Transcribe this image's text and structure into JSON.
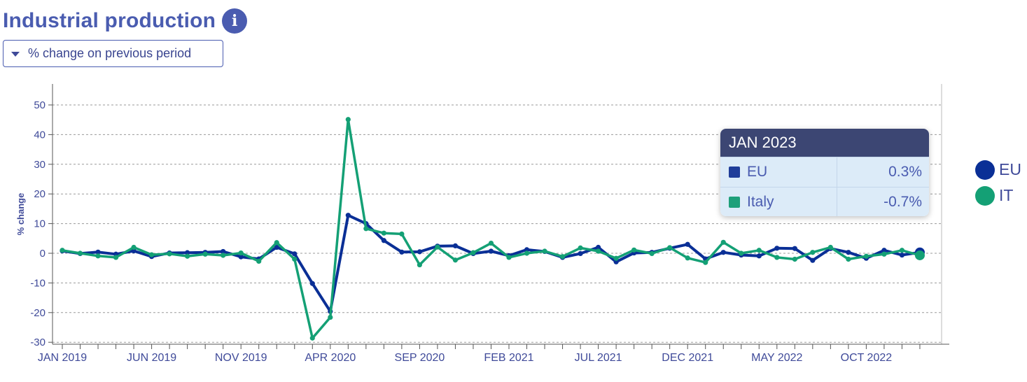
{
  "header": {
    "title": "Industrial production",
    "info_icon": "info-icon",
    "dropdown_label": "% change on previous period",
    "dropdown_icon": "caret-down-icon"
  },
  "tooltip": {
    "period": "JAN 2023",
    "rows": [
      {
        "label": "EU",
        "value": "0.3%",
        "color": "#1f3d99"
      },
      {
        "label": "Italy",
        "value": "-0.7%",
        "color": "#1ea07a"
      }
    ]
  },
  "legend": [
    {
      "label": "EU",
      "color": "#0a2f96"
    },
    {
      "label": "IT",
      "color": "#14a075"
    }
  ],
  "chart_data": {
    "type": "line",
    "ylabel": "% change",
    "ylim": [
      -30,
      57
    ],
    "yticks": [
      50,
      40,
      30,
      20,
      10,
      0,
      -10,
      -20,
      -30
    ],
    "x": [
      "JAN 2019",
      "FEB 2019",
      "MAR 2019",
      "APR 2019",
      "MAY 2019",
      "JUN 2019",
      "JUL 2019",
      "AUG 2019",
      "SEP 2019",
      "OCT 2019",
      "NOV 2019",
      "DEC 2019",
      "JAN 2020",
      "FEB 2020",
      "MAR 2020",
      "APR 2020",
      "MAY 2020",
      "JUN 2020",
      "JUL 2020",
      "AUG 2020",
      "SEP 2020",
      "OCT 2020",
      "NOV 2020",
      "DEC 2020",
      "JAN 2021",
      "FEB 2021",
      "MAR 2021",
      "APR 2021",
      "MAY 2021",
      "JUN 2021",
      "JUL 2021",
      "AUG 2021",
      "SEP 2021",
      "OCT 2021",
      "NOV 2021",
      "DEC 2021",
      "JAN 2022",
      "FEB 2022",
      "MAR 2022",
      "APR 2022",
      "MAY 2022",
      "JUN 2022",
      "JUL 2022",
      "AUG 2022",
      "SEP 2022",
      "OCT 2022",
      "NOV 2022",
      "DEC 2022",
      "JAN 2023"
    ],
    "xtick_labels": [
      "JAN 2019",
      "JUN 2019",
      "NOV 2019",
      "APR 2020",
      "SEP 2020",
      "FEB 2021",
      "JUL 2021",
      "DEC 2021",
      "MAY 2022",
      "OCT 2022"
    ],
    "grid": true,
    "legend_position": "right",
    "series": [
      {
        "name": "EU",
        "color": "#0a2f96",
        "values": [
          0.8,
          -0.1,
          0.4,
          -0.3,
          0.8,
          -1.1,
          0.1,
          0.2,
          0.3,
          0.6,
          -1.2,
          -1.9,
          2.0,
          -0.2,
          -10.2,
          -19.6,
          12.8,
          10.0,
          4.3,
          0.4,
          0.5,
          2.4,
          2.5,
          -0.1,
          0.7,
          -0.8,
          1.2,
          0.6,
          -1.4,
          -0.1,
          2.0,
          -2.9,
          0.1,
          0.3,
          1.7,
          3.0,
          -1.9,
          0.3,
          -0.6,
          -0.9,
          1.7,
          1.6,
          -2.4,
          1.6,
          0.3,
          -1.7,
          1.0,
          -0.6,
          0.3
        ]
      },
      {
        "name": "IT",
        "color": "#14a075",
        "values": [
          1.0,
          0.0,
          -0.9,
          -1.4,
          2.0,
          -0.5,
          -0.2,
          -1.0,
          -0.3,
          -0.7,
          0.1,
          -2.7,
          3.6,
          -2.0,
          -28.6,
          -21.6,
          45.1,
          8.3,
          6.8,
          6.5,
          -3.9,
          2.1,
          -2.3,
          0.2,
          3.4,
          -1.4,
          0.0,
          0.7,
          -1.1,
          1.8,
          0.7,
          -1.7,
          1.1,
          -0.1,
          1.9,
          -1.6,
          -3.1,
          3.7,
          0.0,
          1.0,
          -1.4,
          -2.0,
          0.3,
          2.0,
          -2.0,
          -1.0,
          -0.3,
          1.0,
          -0.7
        ]
      }
    ]
  }
}
